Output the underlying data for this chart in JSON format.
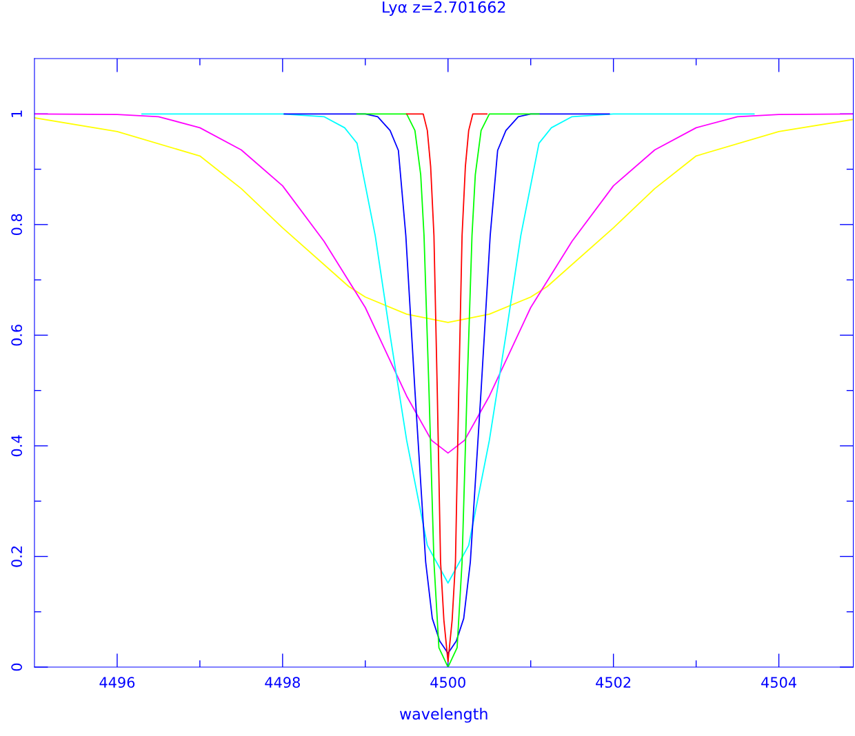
{
  "chart_data": {
    "type": "line",
    "title": "Lyα z=2.701662",
    "xlabel": "wavelength",
    "xlim": [
      4495,
      4504.9
    ],
    "ylim": [
      0,
      1.1
    ],
    "xticks": [
      4496,
      {
        "value": 4497,
        "label": null
      },
      4498,
      {
        "value": 4499,
        "label": null
      },
      4500,
      {
        "value": 4501,
        "label": null
      },
      4502,
      {
        "value": 4503,
        "label": null
      },
      4504
    ],
    "yticks": [
      0,
      {
        "value": 0.1,
        "label": null
      },
      0.2,
      {
        "value": 0.3,
        "label": null
      },
      0.4,
      {
        "value": 0.5,
        "label": null
      },
      0.6,
      {
        "value": 0.7,
        "label": null
      },
      0.8,
      {
        "value": 0.9,
        "label": null
      },
      1
    ],
    "grid": false,
    "legend": false,
    "marker": "none",
    "line_style": "solid",
    "series": [
      {
        "color": "#ffff00",
        "x": [
          4495,
          4496,
          4497,
          4497.5,
          4498,
          4498.8,
          4499,
          4499.5,
          4500,
          4500.5,
          4501,
          4501.2,
          4502,
          4502.5,
          4503,
          4504,
          4504.9
        ],
        "values": [
          0.993,
          0.968,
          0.924,
          0.865,
          0.794,
          0.688,
          0.669,
          0.638,
          0.623,
          0.638,
          0.669,
          0.688,
          0.794,
          0.865,
          0.924,
          0.968,
          0.99
        ]
      },
      {
        "color": "#ff00ff",
        "x": [
          4495,
          4496,
          4496.5,
          4497,
          4497.5,
          4498,
          4498.5,
          4499,
          4499.5,
          4499.8,
          4500,
          4500.2,
          4500.5,
          4501,
          4501.5,
          4502,
          4502.5,
          4503,
          4503.5,
          4504,
          4504.9
        ],
        "values": [
          1,
          0.999,
          0.995,
          0.975,
          0.935,
          0.87,
          0.77,
          0.65,
          0.49,
          0.41,
          0.387,
          0.41,
          0.49,
          0.65,
          0.77,
          0.87,
          0.935,
          0.975,
          0.995,
          0.999,
          1
        ]
      },
      {
        "color": "#00ffff",
        "x": [
          4496.3,
          4498,
          4498.5,
          4498.75,
          4498.9,
          4499.12,
          4499.3,
          4499.5,
          4499.75,
          4500,
          4500.25,
          4500.5,
          4500.7,
          4500.88,
          4501.1,
          4501.25,
          4501.5,
          4502,
          4503.7
        ],
        "values": [
          1,
          1,
          0.995,
          0.975,
          0.947,
          0.78,
          0.6,
          0.41,
          0.22,
          0.152,
          0.22,
          0.41,
          0.6,
          0.78,
          0.947,
          0.975,
          0.995,
          1,
          1
        ]
      },
      {
        "color": "#0000ff",
        "x": [
          4498.02,
          4499,
          4499.15,
          4499.3,
          4499.4,
          4499.49,
          4499.6,
          4499.73,
          4499.81,
          4499.9,
          4500,
          4500.1,
          4500.19,
          4500.27,
          4500.4,
          4500.51,
          4500.6,
          4500.7,
          4500.85,
          4501,
          4501.95
        ],
        "values": [
          1,
          1,
          0.995,
          0.97,
          0.934,
          0.78,
          0.5,
          0.19,
          0.088,
          0.047,
          0.025,
          0.047,
          0.088,
          0.19,
          0.5,
          0.78,
          0.934,
          0.97,
          0.995,
          1,
          1
        ]
      },
      {
        "color": "#00ff00",
        "x": [
          4498.9,
          4499.5,
          4499.6,
          4499.67,
          4499.71,
          4499.77,
          4499.83,
          4499.89,
          4500,
          4500.11,
          4500.17,
          4500.23,
          4500.29,
          4500.33,
          4500.4,
          4500.5,
          4501.1
        ],
        "values": [
          1,
          1,
          0.97,
          0.89,
          0.78,
          0.5,
          0.19,
          0.035,
          0.0,
          0.035,
          0.19,
          0.5,
          0.78,
          0.89,
          0.97,
          1,
          1
        ]
      },
      {
        "color": "#ff0000",
        "x": [
          4499.5,
          4499.7,
          4499.75,
          4499.79,
          4499.83,
          4499.87,
          4499.91,
          4499.95,
          4500,
          4500.05,
          4500.09,
          4500.13,
          4500.17,
          4500.21,
          4500.25,
          4500.3,
          4500.47
        ],
        "values": [
          1,
          1,
          0.97,
          0.905,
          0.78,
          0.5,
          0.19,
          0.085,
          0.01,
          0.085,
          0.19,
          0.5,
          0.78,
          0.905,
          0.97,
          1,
          1
        ]
      }
    ]
  }
}
